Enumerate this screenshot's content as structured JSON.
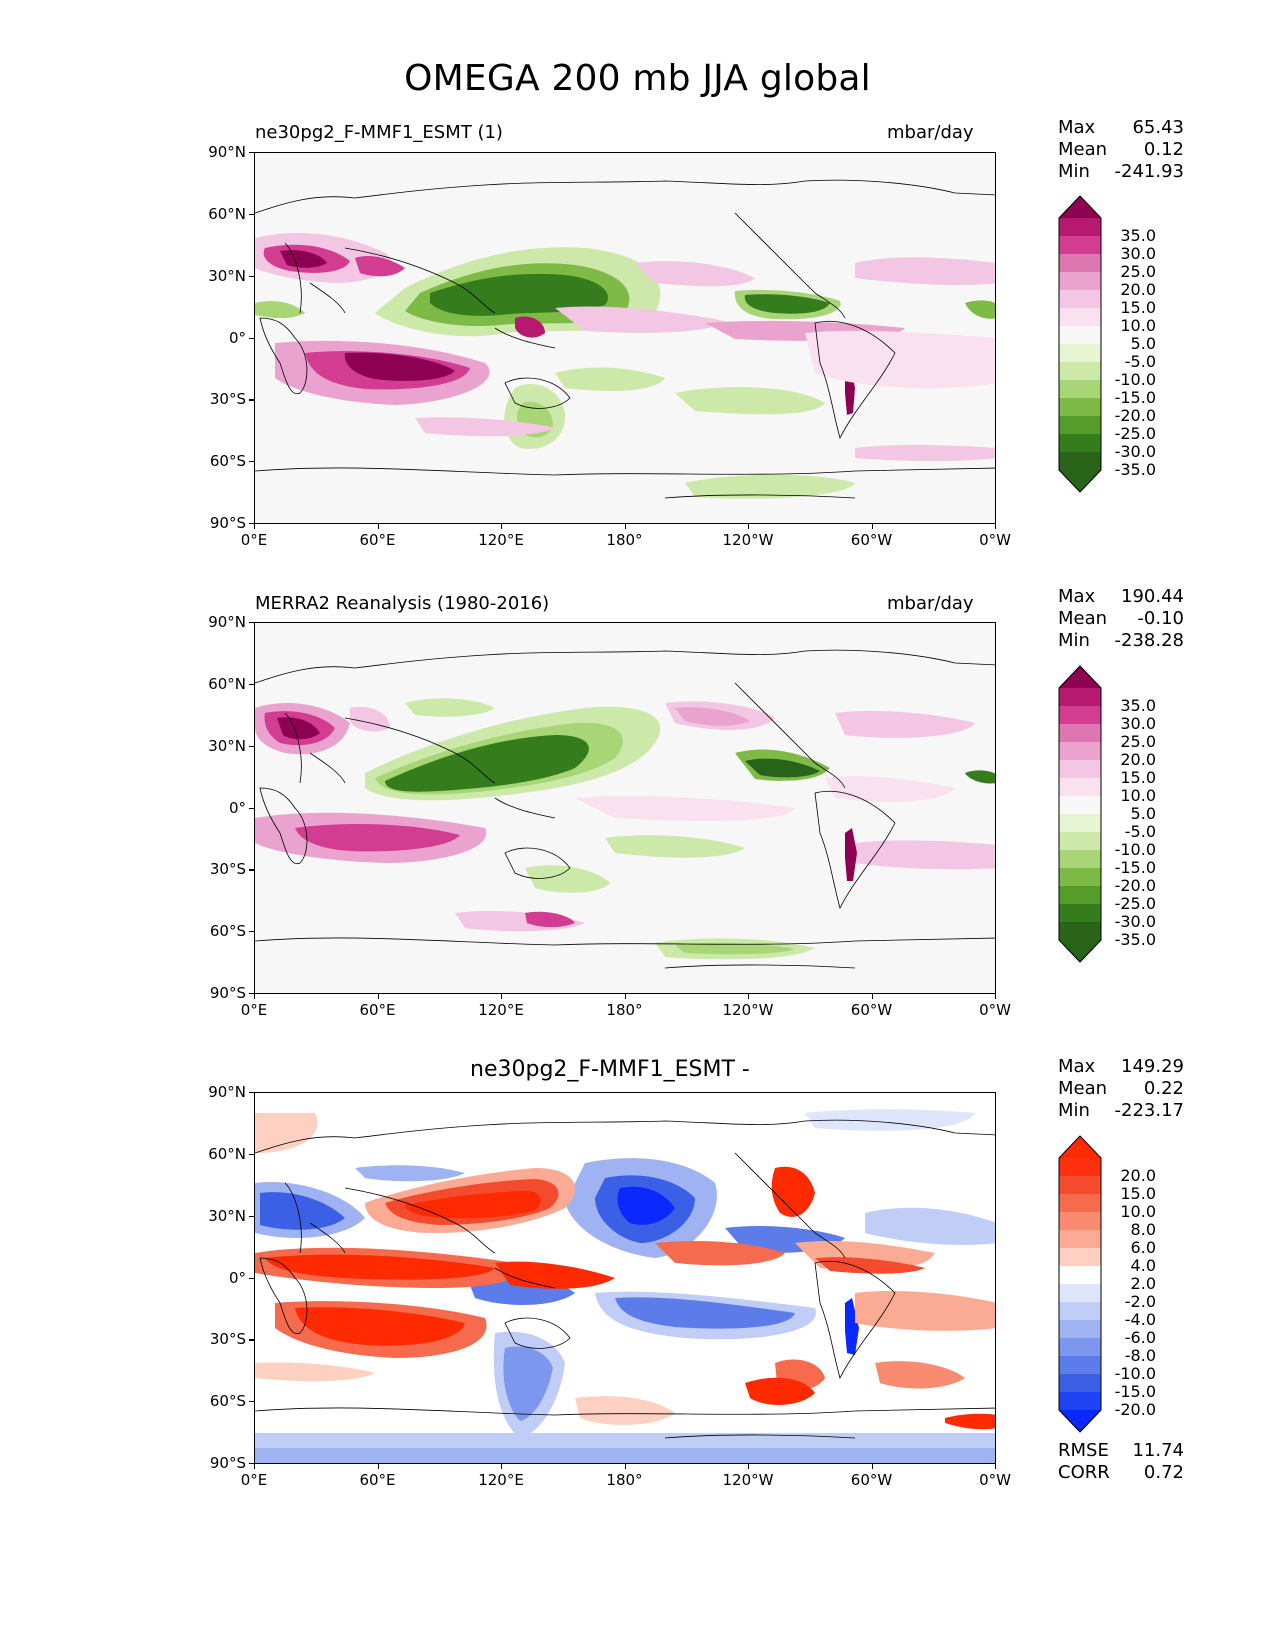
{
  "figure_title": "OMEGA 200 mb JJA global",
  "lat_ticks": [
    "90°N",
    "60°N",
    "30°N",
    "0°",
    "30°S",
    "60°S",
    "90°S"
  ],
  "lon_ticks": [
    "0°E",
    "60°E",
    "120°E",
    "180°",
    "120°W",
    "60°W",
    "0°W"
  ],
  "panels": [
    {
      "id": "test",
      "left_title": "ne30pg2_F-MMF1_ESMT (1)",
      "center_title": "",
      "units": "mbar/day",
      "stats": {
        "max_label": "Max",
        "max": "65.43",
        "mean_label": "Mean",
        "mean": "0.12",
        "min_label": "Min",
        "min": "-241.93"
      },
      "colorbar": {
        "labels": [
          "35.0",
          "30.0",
          "25.0",
          "20.0",
          "15.0",
          "10.0",
          "5.0",
          "-5.0",
          "-10.0",
          "-15.0",
          "-20.0",
          "-25.0",
          "-30.0",
          "-35.0"
        ],
        "colors": [
          "#8e0152",
          "#b7196f",
          "#d23c91",
          "#dd77b2",
          "#eaa3cf",
          "#f3c7e3",
          "#f9e1ef",
          "#f7f7f7",
          "#e6f4d2",
          "#cde9a9",
          "#a8d676",
          "#7eba46",
          "#569c2a",
          "#357d1c",
          "#2b6319",
          "#276419"
        ]
      }
    },
    {
      "id": "reference",
      "left_title": "MERRA2 Reanalysis (1980-2016)",
      "center_title": "",
      "units": "mbar/day",
      "stats": {
        "max_label": "Max",
        "max": "190.44",
        "mean_label": "Mean",
        "mean": "-0.10",
        "min_label": "Min",
        "min": "-238.28"
      },
      "colorbar": {
        "labels": [
          "35.0",
          "30.0",
          "25.0",
          "20.0",
          "15.0",
          "10.0",
          "5.0",
          "-5.0",
          "-10.0",
          "-15.0",
          "-20.0",
          "-25.0",
          "-30.0",
          "-35.0"
        ],
        "colors": [
          "#8e0152",
          "#b7196f",
          "#d23c91",
          "#dd77b2",
          "#eaa3cf",
          "#f3c7e3",
          "#f9e1ef",
          "#f7f7f7",
          "#e6f4d2",
          "#cde9a9",
          "#a8d676",
          "#7eba46",
          "#569c2a",
          "#357d1c",
          "#2b6319",
          "#276419"
        ]
      }
    },
    {
      "id": "difference",
      "left_title": "",
      "center_title": "ne30pg2_F-MMF1_ESMT -",
      "units": "",
      "stats": {
        "max_label": "Max",
        "max": "149.29",
        "mean_label": "Mean",
        "mean": "0.22",
        "min_label": "Min",
        "min": "-223.17"
      },
      "colorbar": {
        "labels": [
          "20.0",
          "15.0",
          "10.0",
          "8.0",
          "6.0",
          "4.0",
          "2.0",
          "-2.0",
          "-4.0",
          "-6.0",
          "-8.0",
          "-10.0",
          "-15.0",
          "-20.0"
        ],
        "colors": [
          "#ff2a00",
          "#ff3010",
          "#f44a2e",
          "#f66a4e",
          "#f88b70",
          "#fbab93",
          "#fdd0c2",
          "#ffffff",
          "#dfe6fb",
          "#c0cdf7",
          "#9fb2f2",
          "#7e97ee",
          "#5c7cea",
          "#3b5fe5",
          "#1d43f5",
          "#0a28ff"
        ]
      },
      "rmse_label": "RMSE",
      "rmse": "11.74",
      "corr_label": "CORR",
      "corr": "0.72"
    }
  ]
}
